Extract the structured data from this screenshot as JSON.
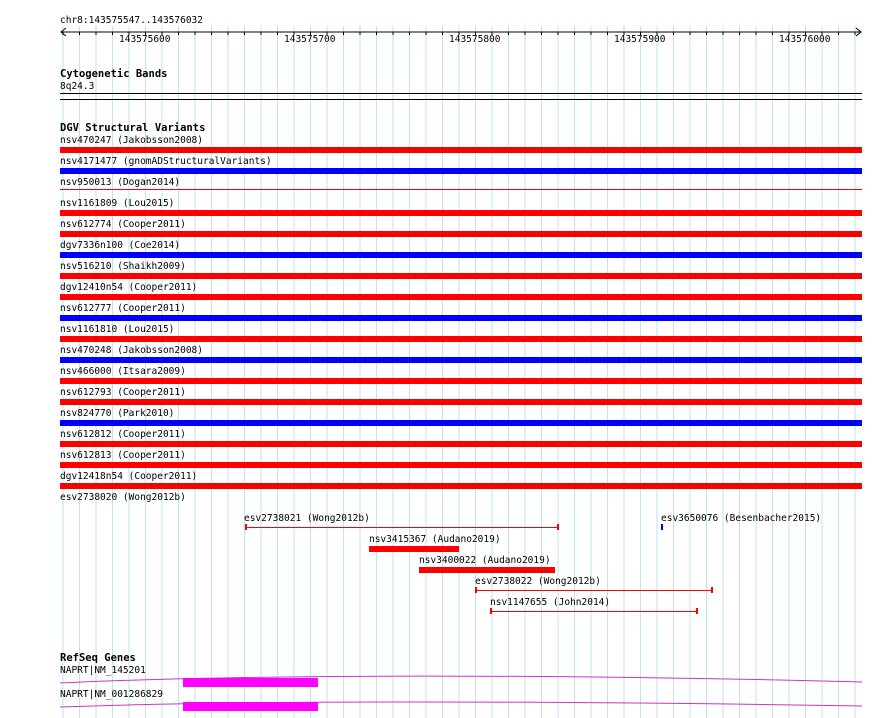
{
  "ruler": {
    "location": "chr8:143575547..143576032",
    "ticks": [
      "143575600",
      "143575700",
      "143575800",
      "143575900",
      "143576000"
    ]
  },
  "cytoband": {
    "title": "Cytogenetic Bands",
    "band": "8q24.3"
  },
  "dgv": {
    "title": "DGV Structural Variants",
    "variants": [
      {
        "label": "nsv470247 (Jakobsson2008)",
        "color": "#ff0000"
      },
      {
        "label": "nsv4171477 (gnomADStructuralVariants)",
        "color": "#0000ff"
      },
      {
        "label": "nsv950013 (Dogan2014)",
        "color": "#ff0000"
      },
      {
        "label": "nsv1161809 (Lou2015)",
        "color": "#ff0000"
      },
      {
        "label": "nsv612774 (Cooper2011)",
        "color": "#ff0000"
      },
      {
        "label": "dgv7336n100 (Coe2014)",
        "color": "#0000ff"
      },
      {
        "label": "nsv516210 (Shaikh2009)",
        "color": "#ff0000"
      },
      {
        "label": "dgv12410n54 (Cooper2011)",
        "color": "#ff0000"
      },
      {
        "label": "nsv612777 (Cooper2011)",
        "color": "#0000ff"
      },
      {
        "label": "nsv1161810 (Lou2015)",
        "color": "#ff0000"
      },
      {
        "label": "nsv470248 (Jakobsson2008)",
        "color": "#0000ff"
      },
      {
        "label": "nsv466000 (Itsara2009)",
        "color": "#ff0000"
      },
      {
        "label": "nsv612793 (Cooper2011)",
        "color": "#ff0000"
      },
      {
        "label": "nsv824770 (Park2010)",
        "color": "#0000ff"
      },
      {
        "label": "nsv612812 (Cooper2011)",
        "color": "#ff0000"
      },
      {
        "label": "nsv612813 (Cooper2011)",
        "color": "#ff0000"
      },
      {
        "label": "dgv12418n54 (Cooper2011)",
        "color": "#ff0000"
      },
      {
        "label": "esv2738020 (Wong2012b)",
        "color": "#ff0000"
      }
    ],
    "short_variants": [
      {
        "label": "esv2738021 (Wong2012b)",
        "color": "#ff0000"
      },
      {
        "label": "esv3650076 (Besenbacher2015)",
        "color": "#0000ff"
      },
      {
        "label": "nsv3415367 (Audano2019)",
        "color": "#ff0000"
      },
      {
        "label": "nsv3400022 (Audano2019)",
        "color": "#ff0000"
      },
      {
        "label": "esv2738022 (Wong2012b)",
        "color": "#ff0000"
      },
      {
        "label": "nsv1147655 (John2014)",
        "color": "#ff0000"
      }
    ]
  },
  "refseq": {
    "title": "RefSeq Genes",
    "genes": [
      {
        "label": "NAPRT|NM_145201",
        "exon_color": "#ff00ff",
        "line_color": "#cc33cc"
      },
      {
        "label": "NAPRT|NM_001286829",
        "exon_color": "#ff00ff",
        "line_color": "#cc33cc"
      }
    ]
  }
}
